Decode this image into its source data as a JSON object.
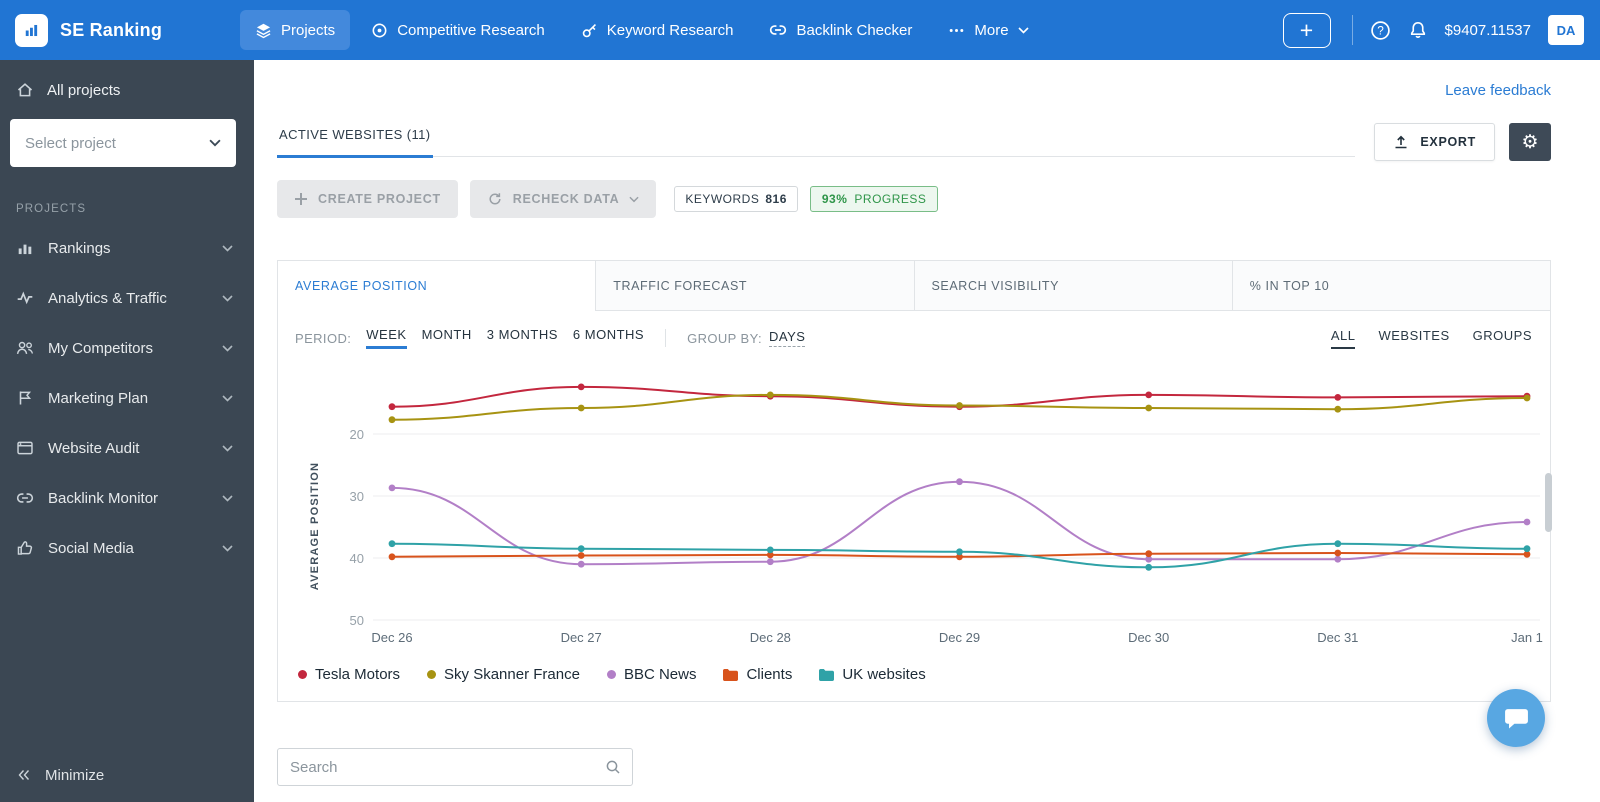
{
  "colors": {
    "header": "#2175d3",
    "sidebar": "#3b4753",
    "accent": "#2b7cd3",
    "progress_green": "#2f9549"
  },
  "header": {
    "brand": "SE Ranking",
    "nav": [
      {
        "label": "Projects",
        "icon": "layers-icon",
        "active": true
      },
      {
        "label": "Competitive Research",
        "icon": "target-icon"
      },
      {
        "label": "Keyword Research",
        "icon": "key-icon"
      },
      {
        "label": "Backlink Checker",
        "icon": "link-icon"
      },
      {
        "label": "More",
        "icon": "more-icon",
        "chevron": true
      }
    ],
    "balance": "$9407.11537",
    "avatar": "DA"
  },
  "sidebar": {
    "all_projects": "All projects",
    "select_project_placeholder": "Select project",
    "section_label": "PROJECTS",
    "items": [
      {
        "label": "Rankings",
        "icon": "rankings-icon"
      },
      {
        "label": "Analytics & Traffic",
        "icon": "analytics-icon"
      },
      {
        "label": "My Competitors",
        "icon": "competitors-icon"
      },
      {
        "label": "Marketing Plan",
        "icon": "marketing-plan-icon"
      },
      {
        "label": "Website Audit",
        "icon": "website-audit-icon"
      },
      {
        "label": "Backlink Monitor",
        "icon": "backlink-monitor-icon"
      },
      {
        "label": "Social Media",
        "icon": "social-media-icon"
      }
    ],
    "minimize": "Minimize"
  },
  "toolbar": {
    "leave_feedback": "Leave feedback",
    "active_websites_tab": "ACTIVE WEBSITES (11)",
    "export_label": "EXPORT",
    "create_project_label": "CREATE PROJECT",
    "recheck_data_label": "RECHECK DATA",
    "keywords_label": "KEYWORDS",
    "keywords_count": "816",
    "progress_value": "93%",
    "progress_label": "PROGRESS"
  },
  "chart_panel": {
    "tabs": [
      {
        "label": "AVERAGE POSITION",
        "active": true
      },
      {
        "label": "TRAFFIC FORECAST"
      },
      {
        "label": "SEARCH VISIBILITY"
      },
      {
        "label": "% IN TOP 10"
      }
    ],
    "period_label": "PERIOD:",
    "periods": [
      {
        "label": "WEEK",
        "active": true
      },
      {
        "label": "MONTH"
      },
      {
        "label": "3 MONTHS"
      },
      {
        "label": "6 MONTHS"
      }
    ],
    "group_by_label": "GROUP BY:",
    "group_by_value": "DAYS",
    "view_filters": [
      {
        "label": "ALL",
        "active": true
      },
      {
        "label": "WEBSITES"
      },
      {
        "label": "GROUPS"
      }
    ]
  },
  "chart_data": {
    "type": "line",
    "x": [
      "Dec 26",
      "Dec 27",
      "Dec 28",
      "Dec 29",
      "Dec 30",
      "Dec 31",
      "Jan 1"
    ],
    "ylabel": "AVERAGE POSITION",
    "yticks": [
      20,
      30,
      40,
      50
    ],
    "ylim": [
      10,
      50
    ],
    "y_inverted": true,
    "grid": "horizontal",
    "legend_position": "bottom",
    "series": [
      {
        "name": "Tesla Motors",
        "color": "#c3273e",
        "marker": "dot",
        "values": [
          15.6,
          12.4,
          13.9,
          15.6,
          13.7,
          14.1,
          13.9
        ]
      },
      {
        "name": "Sky Skanner France",
        "color": "#a79312",
        "marker": "dot",
        "values": [
          17.7,
          15.8,
          13.7,
          15.4,
          15.8,
          16.0,
          14.2
        ]
      },
      {
        "name": "BBC News",
        "color": "#b27fc7",
        "marker": "dot",
        "values": [
          28.7,
          41.0,
          40.6,
          27.7,
          40.2,
          40.2,
          34.2
        ]
      },
      {
        "name": "Clients",
        "color": "#d8531c",
        "marker": "folder",
        "values": [
          39.8,
          39.6,
          39.5,
          39.8,
          39.3,
          39.2,
          39.4
        ]
      },
      {
        "name": "UK websites",
        "color": "#2fa2a7",
        "marker": "folder",
        "values": [
          37.7,
          38.5,
          38.7,
          39.0,
          41.5,
          37.7,
          38.5
        ]
      }
    ]
  },
  "search": {
    "placeholder": "Search"
  }
}
